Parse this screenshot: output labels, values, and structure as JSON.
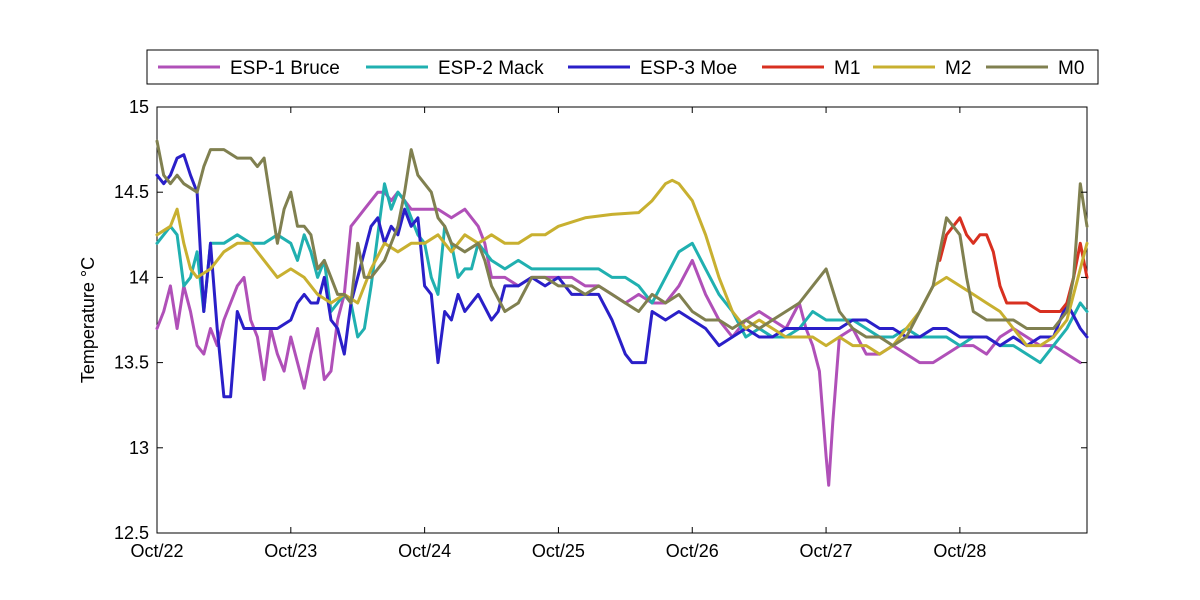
{
  "chart_data": {
    "type": "line",
    "title": "",
    "xlabel": "",
    "ylabel": "Temperature °C",
    "x_tick_labels": [
      "Oct/22",
      "Oct/23",
      "Oct/24",
      "Oct/25",
      "Oct/26",
      "Oct/27",
      "Oct/28"
    ],
    "x_tick_values": [
      0,
      1,
      2,
      3,
      4,
      5,
      6
    ],
    "xlim": [
      0,
      6.95
    ],
    "y_tick_labels": [
      "12.5",
      "13",
      "13.5",
      "14",
      "14.5",
      "15"
    ],
    "y_tick_values": [
      12.5,
      13,
      13.5,
      14,
      14.5,
      15
    ],
    "ylim": [
      12.5,
      15
    ],
    "grid": false,
    "legend_position": "top",
    "series": [
      {
        "name": "ESP-1 Bruce",
        "color": "#b050b8",
        "x": [
          0,
          0.05,
          0.1,
          0.15,
          0.2,
          0.25,
          0.3,
          0.35,
          0.4,
          0.45,
          0.5,
          0.55,
          0.6,
          0.65,
          0.7,
          0.75,
          0.8,
          0.85,
          0.9,
          0.95,
          1.0,
          1.05,
          1.1,
          1.15,
          1.2,
          1.25,
          1.3,
          1.35,
          1.4,
          1.45,
          1.5,
          1.55,
          1.6,
          1.65,
          1.7,
          1.75,
          1.8,
          1.85,
          1.9,
          2.0,
          2.1,
          2.2,
          2.3,
          2.4,
          2.45,
          2.5,
          2.6,
          2.7,
          2.8,
          2.9,
          3.0,
          3.1,
          3.2,
          3.3,
          3.4,
          3.5,
          3.6,
          3.7,
          3.8,
          3.9,
          4.0,
          4.1,
          4.2,
          4.3,
          4.4,
          4.5,
          4.6,
          4.7,
          4.8,
          4.85,
          4.9,
          4.95,
          5.0,
          5.02,
          5.05,
          5.1,
          5.2,
          5.3,
          5.4,
          5.5,
          5.6,
          5.7,
          5.8,
          5.9,
          6.0,
          6.1,
          6.2,
          6.3,
          6.4,
          6.5,
          6.6,
          6.7,
          6.8,
          6.9
        ],
        "values": [
          13.7,
          13.8,
          13.95,
          13.7,
          13.95,
          13.8,
          13.6,
          13.55,
          13.7,
          13.6,
          13.75,
          13.85,
          13.95,
          14.0,
          13.75,
          13.65,
          13.4,
          13.7,
          13.55,
          13.45,
          13.65,
          13.5,
          13.35,
          13.55,
          13.7,
          13.4,
          13.45,
          13.75,
          13.9,
          14.3,
          14.35,
          14.4,
          14.45,
          14.5,
          14.5,
          14.45,
          14.5,
          14.45,
          14.4,
          14.4,
          14.4,
          14.35,
          14.4,
          14.3,
          14.2,
          14.0,
          14.0,
          13.95,
          14.0,
          14.0,
          14.0,
          14.0,
          13.95,
          13.95,
          13.9,
          13.85,
          13.9,
          13.85,
          13.85,
          13.95,
          14.1,
          13.9,
          13.75,
          13.65,
          13.75,
          13.8,
          13.75,
          13.7,
          13.85,
          13.7,
          13.6,
          13.45,
          12.95,
          12.78,
          13.15,
          13.65,
          13.7,
          13.55,
          13.55,
          13.6,
          13.55,
          13.5,
          13.5,
          13.55,
          13.6,
          13.6,
          13.55,
          13.65,
          13.7,
          13.65,
          13.6,
          13.6,
          13.55,
          13.5
        ]
      },
      {
        "name": "ESP-2 Mack",
        "color": "#20b0b0",
        "x": [
          0,
          0.05,
          0.1,
          0.15,
          0.2,
          0.25,
          0.3,
          0.35,
          0.4,
          0.5,
          0.6,
          0.7,
          0.8,
          0.9,
          1.0,
          1.05,
          1.1,
          1.15,
          1.2,
          1.25,
          1.3,
          1.35,
          1.4,
          1.45,
          1.5,
          1.55,
          1.6,
          1.65,
          1.7,
          1.75,
          1.8,
          1.85,
          1.9,
          1.95,
          2.0,
          2.05,
          2.1,
          2.15,
          2.2,
          2.25,
          2.3,
          2.35,
          2.4,
          2.5,
          2.6,
          2.7,
          2.8,
          2.9,
          3.0,
          3.1,
          3.2,
          3.3,
          3.4,
          3.5,
          3.6,
          3.7,
          3.8,
          3.9,
          4.0,
          4.1,
          4.2,
          4.3,
          4.4,
          4.5,
          4.6,
          4.7,
          4.8,
          4.9,
          5.0,
          5.1,
          5.2,
          5.3,
          5.4,
          5.5,
          5.6,
          5.7,
          5.8,
          5.9,
          6.0,
          6.1,
          6.2,
          6.3,
          6.4,
          6.5,
          6.6,
          6.7,
          6.8,
          6.9,
          6.95
        ],
        "values": [
          14.2,
          14.25,
          14.3,
          14.25,
          13.95,
          14.0,
          14.15,
          13.8,
          14.2,
          14.2,
          14.25,
          14.2,
          14.2,
          14.25,
          14.2,
          14.1,
          14.25,
          14.15,
          14.0,
          14.1,
          13.8,
          13.85,
          13.9,
          13.85,
          13.65,
          13.7,
          13.95,
          14.25,
          14.55,
          14.4,
          14.5,
          14.45,
          14.35,
          14.25,
          14.2,
          14.0,
          13.9,
          14.3,
          14.2,
          14.0,
          14.05,
          14.05,
          14.2,
          14.1,
          14.05,
          14.1,
          14.05,
          14.05,
          14.05,
          14.05,
          14.05,
          14.05,
          14.0,
          14.0,
          13.95,
          13.85,
          14.0,
          14.15,
          14.2,
          14.05,
          13.9,
          13.8,
          13.65,
          13.7,
          13.65,
          13.65,
          13.7,
          13.8,
          13.75,
          13.75,
          13.75,
          13.7,
          13.65,
          13.65,
          13.7,
          13.65,
          13.65,
          13.65,
          13.6,
          13.65,
          13.65,
          13.6,
          13.6,
          13.55,
          13.5,
          13.6,
          13.7,
          13.85,
          13.8
        ]
      },
      {
        "name": "ESP-3 Moe",
        "color": "#2a1fc8",
        "x": [
          0,
          0.05,
          0.1,
          0.15,
          0.2,
          0.25,
          0.3,
          0.35,
          0.4,
          0.45,
          0.5,
          0.55,
          0.6,
          0.65,
          0.7,
          0.75,
          0.8,
          0.9,
          1.0,
          1.05,
          1.1,
          1.15,
          1.2,
          1.25,
          1.3,
          1.35,
          1.4,
          1.45,
          1.5,
          1.55,
          1.6,
          1.65,
          1.7,
          1.75,
          1.8,
          1.85,
          1.9,
          1.95,
          2.0,
          2.05,
          2.1,
          2.15,
          2.2,
          2.25,
          2.3,
          2.4,
          2.5,
          2.55,
          2.6,
          2.7,
          2.8,
          2.9,
          3.0,
          3.1,
          3.2,
          3.3,
          3.4,
          3.5,
          3.55,
          3.6,
          3.65,
          3.7,
          3.8,
          3.9,
          4.0,
          4.1,
          4.2,
          4.3,
          4.4,
          4.5,
          4.6,
          4.7,
          4.8,
          4.9,
          5.0,
          5.1,
          5.2,
          5.3,
          5.4,
          5.5,
          5.6,
          5.7,
          5.8,
          5.9,
          6.0,
          6.1,
          6.2,
          6.3,
          6.4,
          6.5,
          6.6,
          6.7,
          6.8,
          6.9,
          6.95
        ],
        "values": [
          14.6,
          14.55,
          14.6,
          14.7,
          14.72,
          14.6,
          14.5,
          13.8,
          14.2,
          13.7,
          13.3,
          13.3,
          13.8,
          13.7,
          13.7,
          13.7,
          13.7,
          13.7,
          13.75,
          13.85,
          13.9,
          13.85,
          13.85,
          14.0,
          13.75,
          13.7,
          13.55,
          13.85,
          14.0,
          14.15,
          14.3,
          14.35,
          14.2,
          14.3,
          14.25,
          14.4,
          14.3,
          14.35,
          13.95,
          13.9,
          13.5,
          13.8,
          13.75,
          13.9,
          13.8,
          13.9,
          13.75,
          13.8,
          13.95,
          13.95,
          14.0,
          13.95,
          14.0,
          13.9,
          13.9,
          13.9,
          13.75,
          13.55,
          13.5,
          13.5,
          13.5,
          13.8,
          13.75,
          13.8,
          13.75,
          13.7,
          13.6,
          13.65,
          13.7,
          13.65,
          13.65,
          13.7,
          13.7,
          13.7,
          13.7,
          13.7,
          13.75,
          13.75,
          13.7,
          13.7,
          13.65,
          13.65,
          13.7,
          13.7,
          13.65,
          13.65,
          13.65,
          13.6,
          13.65,
          13.6,
          13.65,
          13.65,
          13.85,
          13.7,
          13.65
        ]
      },
      {
        "name": "M1",
        "color": "#d83020",
        "x": [
          5.85,
          5.9,
          5.95,
          6.0,
          6.05,
          6.1,
          6.15,
          6.2,
          6.25,
          6.3,
          6.35,
          6.4,
          6.5,
          6.6,
          6.7,
          6.75,
          6.8,
          6.85,
          6.9,
          6.95
        ],
        "values": [
          14.1,
          14.25,
          14.3,
          14.35,
          14.25,
          14.2,
          14.25,
          14.25,
          14.15,
          13.95,
          13.85,
          13.85,
          13.85,
          13.8,
          13.8,
          13.8,
          13.85,
          14.0,
          14.2,
          14.0
        ]
      },
      {
        "name": "M2",
        "color": "#c8b030",
        "x": [
          0,
          0.1,
          0.15,
          0.2,
          0.25,
          0.3,
          0.4,
          0.5,
          0.6,
          0.7,
          0.8,
          0.9,
          1.0,
          1.1,
          1.2,
          1.3,
          1.4,
          1.5,
          1.6,
          1.7,
          1.8,
          1.9,
          2.0,
          2.1,
          2.2,
          2.3,
          2.4,
          2.5,
          2.6,
          2.7,
          2.8,
          2.9,
          3.0,
          3.2,
          3.4,
          3.6,
          3.7,
          3.8,
          3.85,
          3.9,
          4.0,
          4.1,
          4.2,
          4.3,
          4.4,
          4.5,
          4.6,
          4.7,
          4.8,
          4.9,
          5.0,
          5.1,
          5.2,
          5.3,
          5.4,
          5.5,
          5.6,
          5.7,
          5.8,
          5.9,
          6.0,
          6.1,
          6.2,
          6.3,
          6.4,
          6.5,
          6.6,
          6.7,
          6.8,
          6.9,
          6.95
        ],
        "values": [
          14.25,
          14.3,
          14.4,
          14.2,
          14.05,
          14.0,
          14.05,
          14.15,
          14.2,
          14.2,
          14.1,
          14.0,
          14.05,
          14.0,
          13.9,
          13.85,
          13.9,
          13.85,
          14.05,
          14.2,
          14.15,
          14.2,
          14.2,
          14.25,
          14.15,
          14.25,
          14.2,
          14.25,
          14.2,
          14.2,
          14.25,
          14.25,
          14.3,
          14.35,
          14.37,
          14.38,
          14.45,
          14.55,
          14.57,
          14.55,
          14.45,
          14.25,
          14.0,
          13.8,
          13.7,
          13.75,
          13.7,
          13.65,
          13.65,
          13.65,
          13.6,
          13.65,
          13.6,
          13.6,
          13.55,
          13.6,
          13.7,
          13.8,
          13.95,
          14.0,
          13.95,
          13.9,
          13.85,
          13.8,
          13.7,
          13.6,
          13.6,
          13.65,
          13.75,
          14.05,
          14.2
        ]
      },
      {
        "name": "M0",
        "color": "#808050",
        "x": [
          0,
          0.05,
          0.1,
          0.15,
          0.2,
          0.3,
          0.35,
          0.4,
          0.5,
          0.6,
          0.7,
          0.75,
          0.8,
          0.85,
          0.9,
          0.95,
          1.0,
          1.05,
          1.1,
          1.15,
          1.2,
          1.25,
          1.3,
          1.35,
          1.4,
          1.45,
          1.5,
          1.55,
          1.6,
          1.7,
          1.8,
          1.85,
          1.9,
          1.95,
          2.0,
          2.05,
          2.1,
          2.15,
          2.2,
          2.3,
          2.4,
          2.45,
          2.5,
          2.6,
          2.7,
          2.8,
          2.9,
          3.0,
          3.1,
          3.2,
          3.3,
          3.4,
          3.5,
          3.6,
          3.7,
          3.8,
          3.9,
          4.0,
          4.1,
          4.2,
          4.3,
          4.4,
          4.5,
          4.6,
          4.7,
          4.8,
          4.9,
          5.0,
          5.1,
          5.2,
          5.3,
          5.4,
          5.5,
          5.6,
          5.7,
          5.8,
          5.9,
          5.95,
          6.0,
          6.05,
          6.1,
          6.2,
          6.3,
          6.4,
          6.5,
          6.6,
          6.7,
          6.8,
          6.85,
          6.9,
          6.95
        ],
        "values": [
          14.8,
          14.6,
          14.55,
          14.6,
          14.55,
          14.5,
          14.65,
          14.75,
          14.75,
          14.7,
          14.7,
          14.65,
          14.7,
          14.45,
          14.2,
          14.4,
          14.5,
          14.3,
          14.3,
          14.25,
          14.05,
          14.1,
          14.0,
          13.9,
          13.9,
          13.85,
          14.2,
          14.0,
          14.0,
          14.1,
          14.3,
          14.5,
          14.75,
          14.6,
          14.55,
          14.5,
          14.35,
          14.3,
          14.2,
          14.15,
          14.2,
          14.1,
          13.95,
          13.8,
          13.85,
          14.0,
          14.0,
          13.95,
          13.95,
          13.9,
          13.95,
          13.9,
          13.85,
          13.8,
          13.9,
          13.85,
          13.9,
          13.8,
          13.75,
          13.75,
          13.7,
          13.75,
          13.7,
          13.75,
          13.8,
          13.85,
          13.95,
          14.05,
          13.8,
          13.7,
          13.65,
          13.65,
          13.6,
          13.65,
          13.8,
          13.95,
          14.35,
          14.3,
          14.25,
          14.0,
          13.8,
          13.75,
          13.75,
          13.75,
          13.7,
          13.7,
          13.7,
          13.8,
          14.0,
          14.55,
          14.3
        ]
      }
    ]
  }
}
